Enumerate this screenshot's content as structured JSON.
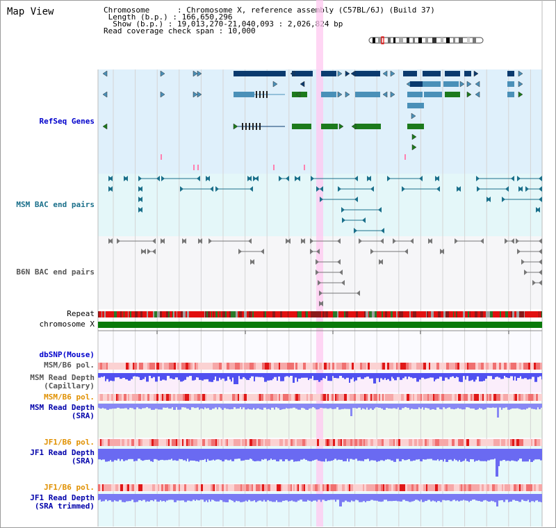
{
  "page": {
    "title": "Map View"
  },
  "info": {
    "chromosome_label": "Chromosome",
    "chromosome_value": "Chromosome X, reference assembly (C57BL/6J) (Build 37)",
    "length_label": "Length (b.p.)",
    "length_value": "166,650,296",
    "show_label": "Show (b.p.)",
    "show_value": "19,013,270-21,040,093 : 2,026,824 bp",
    "coverage_label": "Read coverage check span",
    "coverage_value": "10,000"
  },
  "colors": {
    "refseq_bg": "#dff0fb",
    "msm_bg": "#e4f7f9",
    "b6n_bg": "#f6f6f8",
    "highlight": "#ffc8f0",
    "gene_dark": "#0a3a6e",
    "gene_mid": "#4a90b8",
    "gene_green": "#1c7a1c",
    "bac_msm": "#1a6f8a",
    "bac_b6n": "#777777",
    "repeat_red": "#e21010",
    "chrom_green": "#0a7a0a",
    "depth_blue": "#3b3be6",
    "pol_red": "#e83030"
  },
  "tracks": {
    "refseq": "RefSeq Genes",
    "msm_bac": "MSM BAC end pairs",
    "b6n_bac": "B6N BAC end pairs",
    "repeat": "Repeat",
    "chromosome": "chromosome X",
    "dbsnp": "dbSNP(Mouse)",
    "msm_b6_pol_1": "MSM/B6 pol.",
    "msm_depth_cap_1": "MSM Read Depth",
    "msm_depth_cap_2": "(Capillary)",
    "msm_b6_pol_2": "MSM/B6 pol.",
    "msm_depth_sra_1": "MSM Read Depth",
    "msm_depth_sra_2": "(SRA)",
    "jf1_b6_pol_1": "JF1/B6 pol.",
    "jf1_depth_sra_1": "JF1 Read Depth",
    "jf1_depth_sra_2": "(SRA)",
    "jf1_b6_pol_2": "JF1/B6 pol.",
    "jf1_depth_trim_1": "JF1 Read Depth",
    "jf1_depth_trim_2": "(SRA trimmed)"
  },
  "axis": {
    "ticks": [
      "19200000",
      "19600000",
      "20000000",
      "20400000",
      "20800000"
    ]
  }
}
